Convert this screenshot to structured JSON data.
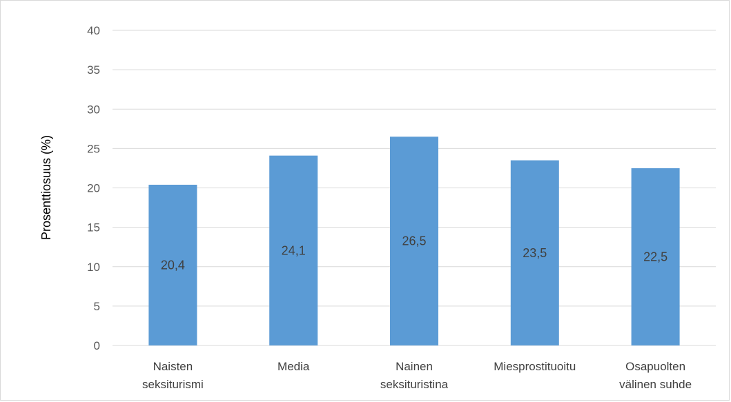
{
  "chart_data": {
    "type": "bar",
    "title": "",
    "xlabel": "",
    "ylabel": "Prosenttiosuus (%)",
    "ylim": [
      0,
      40
    ],
    "ytick_step": 5,
    "yticks": [
      "0",
      "5",
      "10",
      "15",
      "20",
      "25",
      "30",
      "35",
      "40"
    ],
    "grid": true,
    "legend": "none",
    "categories": [
      [
        "Naisten",
        "seksiturismi"
      ],
      [
        "Media"
      ],
      [
        "Nainen",
        "seksituristina"
      ],
      [
        "Miesprostituoitu"
      ],
      [
        "Osapuolten",
        "välinen suhde"
      ]
    ],
    "values": [
      20.4,
      24.1,
      26.5,
      23.5,
      22.5
    ],
    "data_labels": [
      "20,4",
      "24,1",
      "26,5",
      "23,5",
      "22,5"
    ],
    "colors": {
      "bar": "#5b9bd5",
      "grid": "#d9d9d9",
      "axis": "#d9d9d9"
    }
  }
}
